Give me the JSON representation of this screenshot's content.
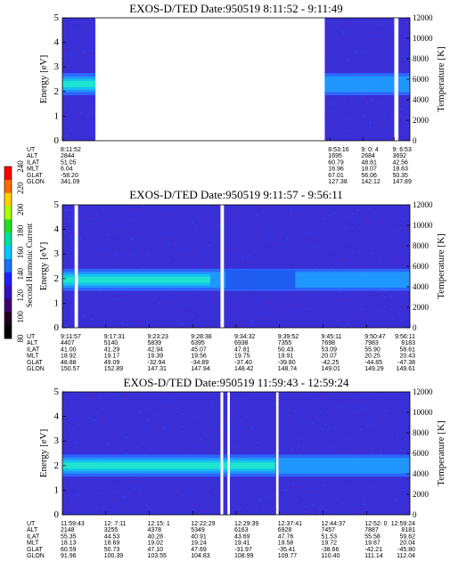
{
  "colorbar": {
    "label": "Second Harmonic Current",
    "ticks": [
      "240",
      "220",
      "200",
      "180",
      "160",
      "140",
      "120",
      "100",
      "80"
    ],
    "colors": [
      "#ff0000",
      "#ff6a00",
      "#ffd000",
      "#a8ff00",
      "#20e020",
      "#00e0a0",
      "#00c8ff",
      "#1870ff",
      "#2020ff",
      "#3010c0",
      "#400070",
      "#200020",
      "#000000"
    ]
  },
  "chart_data": [
    {
      "type": "heatmap",
      "title": "EXOS-D/TED   Date:950519  8:11:52 - 9:11:49",
      "ylabel": "Energy [eV]",
      "y2label": "Temperature [K]",
      "ylim": [
        0,
        5
      ],
      "y2lim": [
        0,
        12000
      ],
      "yticks": [
        "0",
        "1",
        "2",
        "3",
        "4",
        "5"
      ],
      "y2ticks": [
        "0",
        "2000",
        "4000",
        "6000",
        "8000",
        "10000",
        "12000"
      ],
      "data_segments": [
        [
          0.0,
          0.095
        ],
        [
          0.755,
          0.955
        ],
        [
          0.967,
          1.0
        ]
      ],
      "band_center": 2.3,
      "table": {
        "rows": [
          "UT",
          "ALT",
          "ILAT",
          "MLT",
          "GLAT",
          "GLON"
        ],
        "columns": [
          {
            "at": 0.0,
            "values": [
              "8:11:52",
              "2844",
              "51.05",
              "6.04",
              "-58.20",
              "341.09"
            ]
          },
          {
            "at": 0.77,
            "values": [
              "8:53:16",
              "1695",
              "60.79",
              "16.96",
              "67.01",
              "127.38"
            ]
          },
          {
            "at": 0.865,
            "values": [
              "9: 0: 4",
              "2684",
              "48.81",
              "18.07",
              "56.06",
              "142.12"
            ]
          },
          {
            "at": 0.955,
            "values": [
              "9: 6:53",
              "3692",
              "42.56",
              "18.63",
              "50.35",
              "147.89"
            ]
          }
        ]
      }
    },
    {
      "type": "heatmap",
      "title": "EXOS-D/TED   Date:950519  9:11:57 - 9:56:11",
      "ylabel": "Energy [eV]",
      "y2label": "Temperature [K]",
      "ylim": [
        0,
        5
      ],
      "y2lim": [
        0,
        12000
      ],
      "yticks": [
        "0",
        "1",
        "2",
        "3",
        "4",
        "5"
      ],
      "y2ticks": [
        "0",
        "2000",
        "4000",
        "6000",
        "8000",
        "10000",
        "12000"
      ],
      "data_segments": [
        [
          0.0,
          0.035
        ],
        [
          0.045,
          0.455
        ],
        [
          0.465,
          1.0
        ]
      ],
      "band_center": 1.95,
      "table": {
        "rows": [
          "UT",
          "ALT",
          "ILAT",
          "MLT",
          "GLAT",
          "GLON"
        ],
        "columns": [
          {
            "at": 0.0,
            "values": [
              "9:11:57",
              "4407",
              "41.00",
              "18.92",
              "48.88",
              "150.57"
            ]
          },
          {
            "at": 0.125,
            "values": [
              "9:17:31",
              "5140",
              "41.29",
              "19.17",
              "49.09",
              "152.89"
            ]
          },
          {
            "at": 0.25,
            "values": [
              "9:23:23",
              "5839",
              "42.94",
              "19.39",
              "-32.94",
              "147.31"
            ]
          },
          {
            "at": 0.375,
            "values": [
              "9:28:38",
              "6395",
              "45.07",
              "19.56",
              "-34.89",
              "147.94"
            ]
          },
          {
            "at": 0.5,
            "values": [
              "9:34:32",
              "6938",
              "47.81",
              "19.75",
              "-37.40",
              "148.42"
            ]
          },
          {
            "at": 0.625,
            "values": [
              "9:39:52",
              "7355",
              "50.43",
              "19.91",
              "-39.80",
              "148.74"
            ]
          },
          {
            "at": 0.75,
            "values": [
              "9:45:11",
              "7698",
              "53.09",
              "20.07",
              "-42.25",
              "149.01"
            ]
          },
          {
            "at": 0.875,
            "values": [
              "9:50:47",
              "7983",
              "55.90",
              "20.25",
              "-44.85",
              "149.29"
            ]
          },
          {
            "at": 1.0,
            "values": [
              "9:56:11",
              "8183",
              "58.61",
              "20.43",
              "-47.38",
              "149.61"
            ]
          }
        ]
      }
    },
    {
      "type": "heatmap",
      "title": "EXOS-D/TED   Date:950519  11:59:43 - 12:59:24",
      "ylabel": "Energy [eV]",
      "y2label": "Temperature [K]",
      "ylim": [
        0,
        5
      ],
      "y2lim": [
        0,
        12000
      ],
      "yticks": [
        "0",
        "1",
        "2",
        "3",
        "4",
        "5"
      ],
      "y2ticks": [
        "0",
        "2000",
        "4000",
        "6000",
        "8000",
        "10000",
        "12000"
      ],
      "data_segments": [
        [
          0.0,
          0.455
        ],
        [
          0.463,
          0.475
        ],
        [
          0.482,
          0.615
        ],
        [
          0.622,
          1.0
        ]
      ],
      "band_center": 2.0,
      "table": {
        "rows": [
          "UT",
          "ALT",
          "ILAT",
          "MLT",
          "GLAT",
          "GLON"
        ],
        "columns": [
          {
            "at": 0.0,
            "values": [
              "11:59:43",
              "2148",
              "55.35",
              "18.13",
              "60.59",
              "91.96"
            ]
          },
          {
            "at": 0.125,
            "values": [
              "12: 7:11",
              "3255",
              "44.53",
              "18.69",
              "50.73",
              "100.39"
            ]
          },
          {
            "at": 0.25,
            "values": [
              "12:15: 1",
              "4378",
              "40.28",
              "19.02",
              "47.10",
              "103.55"
            ]
          },
          {
            "at": 0.375,
            "values": [
              "12:22:29",
              "5349",
              "40.91",
              "19.24",
              "47.69",
              "104.83"
            ]
          },
          {
            "at": 0.5,
            "values": [
              "12:29:39",
              "6163",
              "43.69",
              "19.41",
              "-31.97",
              "108.99"
            ]
          },
          {
            "at": 0.625,
            "values": [
              "12:37:41",
              "6928",
              "47.76",
              "19.58",
              "-35.41",
              "109.77"
            ]
          },
          {
            "at": 0.75,
            "values": [
              "12:44:37",
              "7457",
              "51.53",
              "19.72",
              "-38.66",
              "110.40"
            ]
          },
          {
            "at": 0.875,
            "values": [
              "12:52: 0",
              "7887",
              "55.58",
              "19.87",
              "-42.21",
              "111.14"
            ]
          },
          {
            "at": 1.0,
            "values": [
              "12:59:24",
              "8181",
              "59.62",
              "20.04",
              "-45.80",
              "112.04"
            ]
          }
        ]
      }
    }
  ]
}
